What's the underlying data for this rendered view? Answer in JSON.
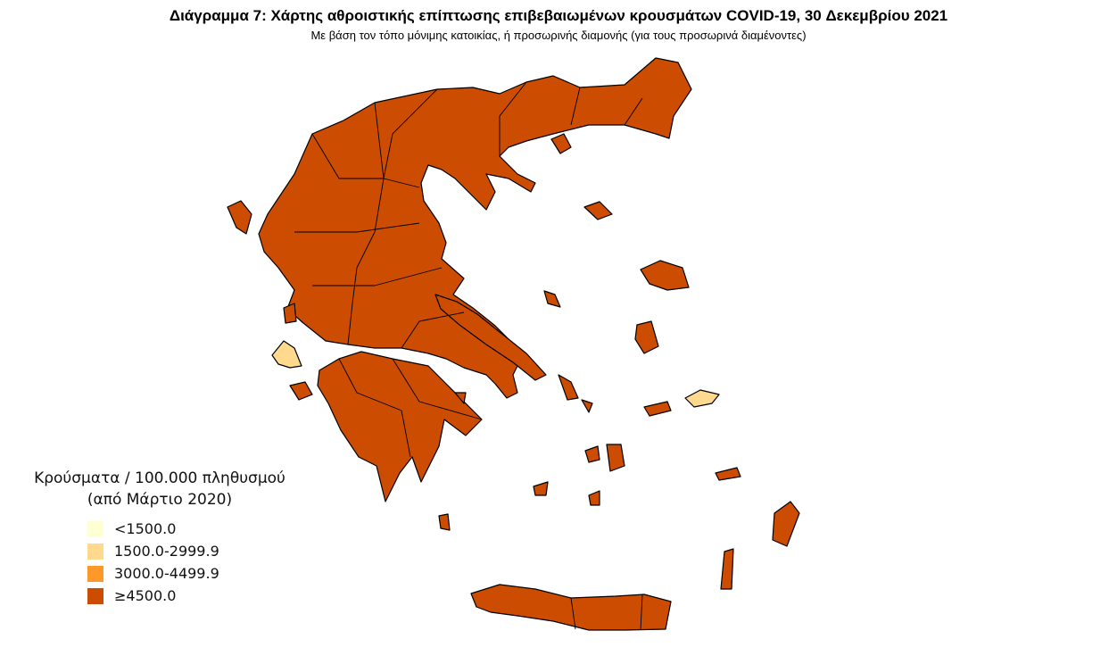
{
  "title": "Διάγραμμα 7: Χάρτης αθροιστικής επίπτωσης επιβεβαιωμένων κρουσμάτων COVID-19, 30 Δεκεμβρίου 2021",
  "subtitle": "Με βάση τον τόπο μόνιμης κατοικίας, ή προσωρινής διαμονής (για τους προσωρινά διαμένοντες)",
  "legend": {
    "title_line1": "Κρούσματα / 100.000 πληθυσμού",
    "title_line2": "(από Μάρτιο 2020)",
    "items": [
      {
        "label": "<1500.0",
        "color": "#ffffd4"
      },
      {
        "label": "1500.0-2999.9",
        "color": "#fed98e"
      },
      {
        "label": "3000.0-4499.9",
        "color": "#fe9929"
      },
      {
        "label": "≥4500.0",
        "color": "#cc4c02"
      }
    ]
  },
  "map": {
    "region_classes": {
      "mainland": "≥4500.0",
      "peloponnese": "≥4500.0",
      "evia": "≥4500.0",
      "crete": "≥4500.0",
      "kefalonia": "1500.0-2999.9",
      "samos": "1500.0-2999.9",
      "other_islands": "≥4500.0"
    }
  }
}
